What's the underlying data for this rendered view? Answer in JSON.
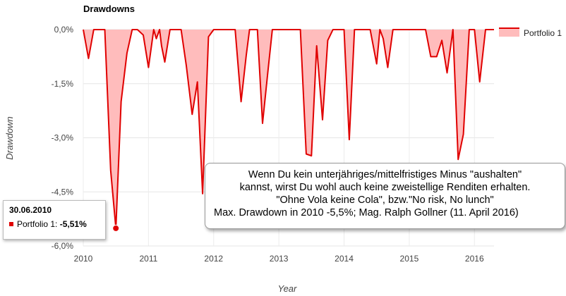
{
  "chart_data": {
    "type": "area",
    "title": "Drawdowns",
    "xlabel": "Year",
    "ylabel": "Drawdown",
    "x_ticks": [
      "2010",
      "2011",
      "2012",
      "2013",
      "2014",
      "2015",
      "2016"
    ],
    "y_ticks": [
      "0,0%",
      "-1,5%",
      "-3,0%",
      "-4,5%",
      "-6,0%"
    ],
    "xlim": [
      2010.0,
      2016.3
    ],
    "ylim": [
      -6.0,
      0.0
    ],
    "grid": true,
    "legend_position": "right",
    "series": [
      {
        "name": "Portfolio 1",
        "color": "#e00000",
        "fill": "#ffbcbc",
        "points": [
          [
            2010.0,
            0.0
          ],
          [
            2010.08,
            -0.8
          ],
          [
            2010.16,
            0.0
          ],
          [
            2010.33,
            0.0
          ],
          [
            2010.42,
            -3.9
          ],
          [
            2010.5,
            -5.51
          ],
          [
            2010.58,
            -2.0
          ],
          [
            2010.67,
            -0.65
          ],
          [
            2010.75,
            0.0
          ],
          [
            2010.83,
            0.0
          ],
          [
            2010.92,
            -0.15
          ],
          [
            2011.0,
            -1.05
          ],
          [
            2011.08,
            0.0
          ],
          [
            2011.12,
            -0.25
          ],
          [
            2011.17,
            0.0
          ],
          [
            2011.2,
            -0.45
          ],
          [
            2011.25,
            -0.9
          ],
          [
            2011.33,
            0.0
          ],
          [
            2011.5,
            0.0
          ],
          [
            2011.58,
            -1.0
          ],
          [
            2011.67,
            -2.35
          ],
          [
            2011.75,
            -1.45
          ],
          [
            2011.83,
            -4.55
          ],
          [
            2011.92,
            -0.2
          ],
          [
            2012.0,
            0.0
          ],
          [
            2012.33,
            0.0
          ],
          [
            2012.42,
            -2.0
          ],
          [
            2012.5,
            -0.7
          ],
          [
            2012.55,
            0.0
          ],
          [
            2012.67,
            0.0
          ],
          [
            2012.75,
            -2.6
          ],
          [
            2012.83,
            -1.2
          ],
          [
            2012.9,
            0.0
          ],
          [
            2013.33,
            0.0
          ],
          [
            2013.42,
            -3.45
          ],
          [
            2013.5,
            -3.5
          ],
          [
            2013.58,
            -0.45
          ],
          [
            2013.67,
            -2.5
          ],
          [
            2013.75,
            -0.3
          ],
          [
            2013.83,
            0.0
          ],
          [
            2014.0,
            0.0
          ],
          [
            2014.08,
            -3.05
          ],
          [
            2014.16,
            0.0
          ],
          [
            2014.4,
            0.0
          ],
          [
            2014.5,
            -0.95
          ],
          [
            2014.55,
            0.0
          ],
          [
            2014.6,
            -0.25
          ],
          [
            2014.67,
            -1.05
          ],
          [
            2014.75,
            0.0
          ],
          [
            2015.25,
            0.0
          ],
          [
            2015.33,
            -0.75
          ],
          [
            2015.42,
            -0.75
          ],
          [
            2015.5,
            -0.3
          ],
          [
            2015.58,
            -1.2
          ],
          [
            2015.67,
            0.0
          ],
          [
            2015.75,
            -3.6
          ],
          [
            2015.83,
            -2.9
          ],
          [
            2015.92,
            0.0
          ],
          [
            2016.0,
            0.0
          ],
          [
            2016.08,
            -1.45
          ],
          [
            2016.17,
            0.0
          ],
          [
            2016.3,
            0.0
          ]
        ]
      }
    ],
    "highlight": {
      "date": "30.06.2010",
      "series": "Portfolio 1",
      "x": 2010.5,
      "y": -5.51,
      "label": "-5,51%"
    },
    "annotation": {
      "lines": [
        "Wenn Du kein unterjähriges/mittelfristiges Minus \"aushalten\"",
        "kannst, wirst Du wohl auch keine zweistellige Renditen erhalten.",
        "\"Ohne Vola keine Cola\", bzw.\"No risk, No lunch\"",
        "Max. Drawdown in 2010 -5,5%; Mag. Ralph Gollner (11. April 2016)"
      ]
    },
    "tooltip": {
      "date": "30.06.2010",
      "series_label": "Portfolio 1:",
      "value": "-5,51%"
    }
  }
}
